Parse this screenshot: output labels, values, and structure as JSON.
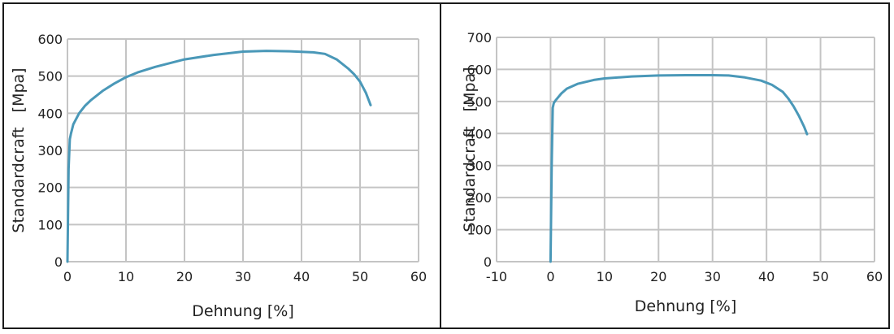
{
  "chart_data": [
    {
      "type": "line",
      "title": "",
      "xlabel": "Dehnung [%]",
      "ylabel": "Standardcraft   [Mpa]",
      "xlim": [
        0,
        60
      ],
      "ylim": [
        0,
        600
      ],
      "xticks": [
        0,
        10,
        20,
        30,
        40,
        50,
        60
      ],
      "yticks": [
        0,
        100,
        200,
        300,
        400,
        500,
        600
      ],
      "grid": true,
      "line_color": "#4a98b8",
      "series": [
        {
          "x": [
            0,
            0.2,
            0.4,
            0.6,
            1,
            2,
            3,
            4,
            6,
            8,
            10,
            12,
            15,
            20,
            25,
            30,
            34,
            38,
            42,
            44,
            46,
            48,
            49,
            50,
            51,
            51.8
          ],
          "y": [
            0,
            250,
            330,
            345,
            370,
            400,
            420,
            435,
            460,
            480,
            497,
            510,
            525,
            545,
            557,
            566,
            568,
            567,
            564,
            560,
            545,
            520,
            505,
            485,
            455,
            422
          ]
        }
      ]
    },
    {
      "type": "line",
      "title": "",
      "xlabel": "Dehnung [%]",
      "ylabel": "Standardcraft   [Mpa]",
      "xlim": [
        -10,
        60
      ],
      "ylim": [
        0,
        700
      ],
      "xticks": [
        -10,
        0,
        10,
        20,
        30,
        40,
        50,
        60
      ],
      "yticks": [
        0,
        100,
        200,
        300,
        400,
        500,
        600,
        700
      ],
      "grid": true,
      "line_color": "#4a98b8",
      "series": [
        {
          "x": [
            0,
            0.2,
            0.4,
            0.6,
            1,
            2,
            3,
            5,
            8,
            10,
            15,
            20,
            25,
            30,
            33,
            36,
            39,
            41,
            43,
            44,
            45,
            46,
            47,
            47.5
          ],
          "y": [
            0,
            300,
            480,
            495,
            505,
            525,
            540,
            555,
            567,
            572,
            578,
            581,
            582,
            582,
            581,
            575,
            565,
            552,
            530,
            510,
            485,
            455,
            420,
            398
          ]
        }
      ]
    }
  ]
}
